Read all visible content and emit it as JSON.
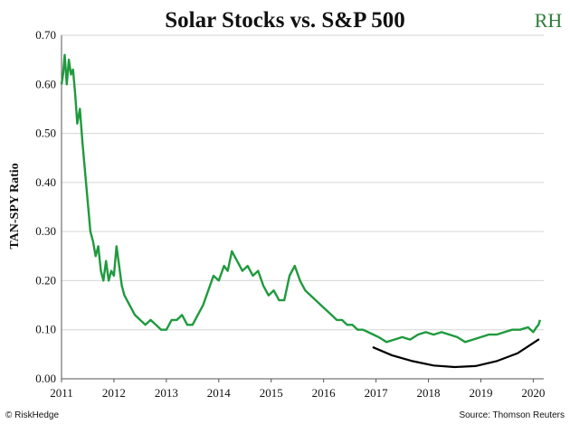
{
  "chart_data": {
    "type": "line",
    "title": "Solar Stocks vs. S&P 500",
    "ylabel": "TAN-SPY Ratio",
    "xlabel": "",
    "ylim": [
      0,
      0.7
    ],
    "yticks": [
      "0.00",
      "0.10",
      "0.20",
      "0.30",
      "0.40",
      "0.50",
      "0.60",
      "0.70"
    ],
    "xlim": [
      2011,
      2020.2
    ],
    "xticks": [
      "2011",
      "2012",
      "2013",
      "2014",
      "2015",
      "2016",
      "2017",
      "2018",
      "2019",
      "2020"
    ],
    "grid": "horizontal",
    "series_color": "#1f9a3e",
    "series": [
      {
        "x": [
          2011.0,
          2011.03,
          2011.06,
          2011.1,
          2011.14,
          2011.18,
          2011.22,
          2011.26,
          2011.3,
          2011.35,
          2011.4,
          2011.45,
          2011.5,
          2011.55,
          2011.6,
          2011.65,
          2011.7,
          2011.75,
          2011.8,
          2011.85,
          2011.9,
          2011.95,
          2012.0,
          2012.05,
          2012.1,
          2012.15,
          2012.2,
          2012.3,
          2012.4,
          2012.5,
          2012.6,
          2012.7,
          2012.8,
          2012.9,
          2013.0,
          2013.1,
          2013.2,
          2013.3,
          2013.4,
          2013.5,
          2013.6,
          2013.7,
          2013.8,
          2013.9,
          2014.0,
          2014.1,
          2014.17,
          2014.25,
          2014.35,
          2014.45,
          2014.55,
          2014.65,
          2014.75,
          2014.85,
          2014.95,
          2015.05,
          2015.15,
          2015.25,
          2015.35,
          2015.45,
          2015.55,
          2015.65,
          2015.75,
          2015.85,
          2015.95,
          2016.05,
          2016.15,
          2016.25,
          2016.35,
          2016.45,
          2016.55,
          2016.65,
          2016.75,
          2016.85,
          2016.95,
          2017.05,
          2017.2,
          2017.35,
          2017.5,
          2017.65,
          2017.8,
          2017.95,
          2018.1,
          2018.25,
          2018.4,
          2018.55,
          2018.7,
          2018.85,
          2019.0,
          2019.15,
          2019.3,
          2019.45,
          2019.6,
          2019.75,
          2019.9,
          2020.0,
          2020.06,
          2020.1,
          2020.13
        ],
        "y": [
          0.6,
          0.62,
          0.66,
          0.6,
          0.65,
          0.62,
          0.63,
          0.58,
          0.52,
          0.55,
          0.48,
          0.42,
          0.36,
          0.3,
          0.28,
          0.25,
          0.27,
          0.22,
          0.2,
          0.24,
          0.2,
          0.22,
          0.21,
          0.27,
          0.23,
          0.19,
          0.17,
          0.15,
          0.13,
          0.12,
          0.11,
          0.12,
          0.11,
          0.1,
          0.1,
          0.12,
          0.12,
          0.13,
          0.11,
          0.11,
          0.13,
          0.15,
          0.18,
          0.21,
          0.2,
          0.23,
          0.22,
          0.26,
          0.24,
          0.22,
          0.23,
          0.21,
          0.22,
          0.19,
          0.17,
          0.18,
          0.16,
          0.16,
          0.21,
          0.23,
          0.2,
          0.18,
          0.17,
          0.16,
          0.15,
          0.14,
          0.13,
          0.12,
          0.12,
          0.11,
          0.11,
          0.1,
          0.1,
          0.095,
          0.09,
          0.085,
          0.075,
          0.08,
          0.085,
          0.08,
          0.09,
          0.095,
          0.09,
          0.095,
          0.09,
          0.085,
          0.075,
          0.08,
          0.085,
          0.09,
          0.09,
          0.095,
          0.1,
          0.1,
          0.105,
          0.095,
          0.105,
          0.11,
          0.12
        ]
      }
    ],
    "annotation_curve": {
      "x": [
        2016.95,
        2017.3,
        2017.7,
        2018.1,
        2018.5,
        2018.9,
        2019.3,
        2019.7,
        2020.1
      ],
      "y": [
        0.064,
        0.048,
        0.036,
        0.027,
        0.024,
        0.026,
        0.036,
        0.052,
        0.08
      ],
      "color": "#000000"
    }
  },
  "logo": {
    "text": "RH",
    "color": "#2f7d3a"
  },
  "footer": {
    "left": "© RiskHedge",
    "right": "Source: Thomson Reuters"
  }
}
